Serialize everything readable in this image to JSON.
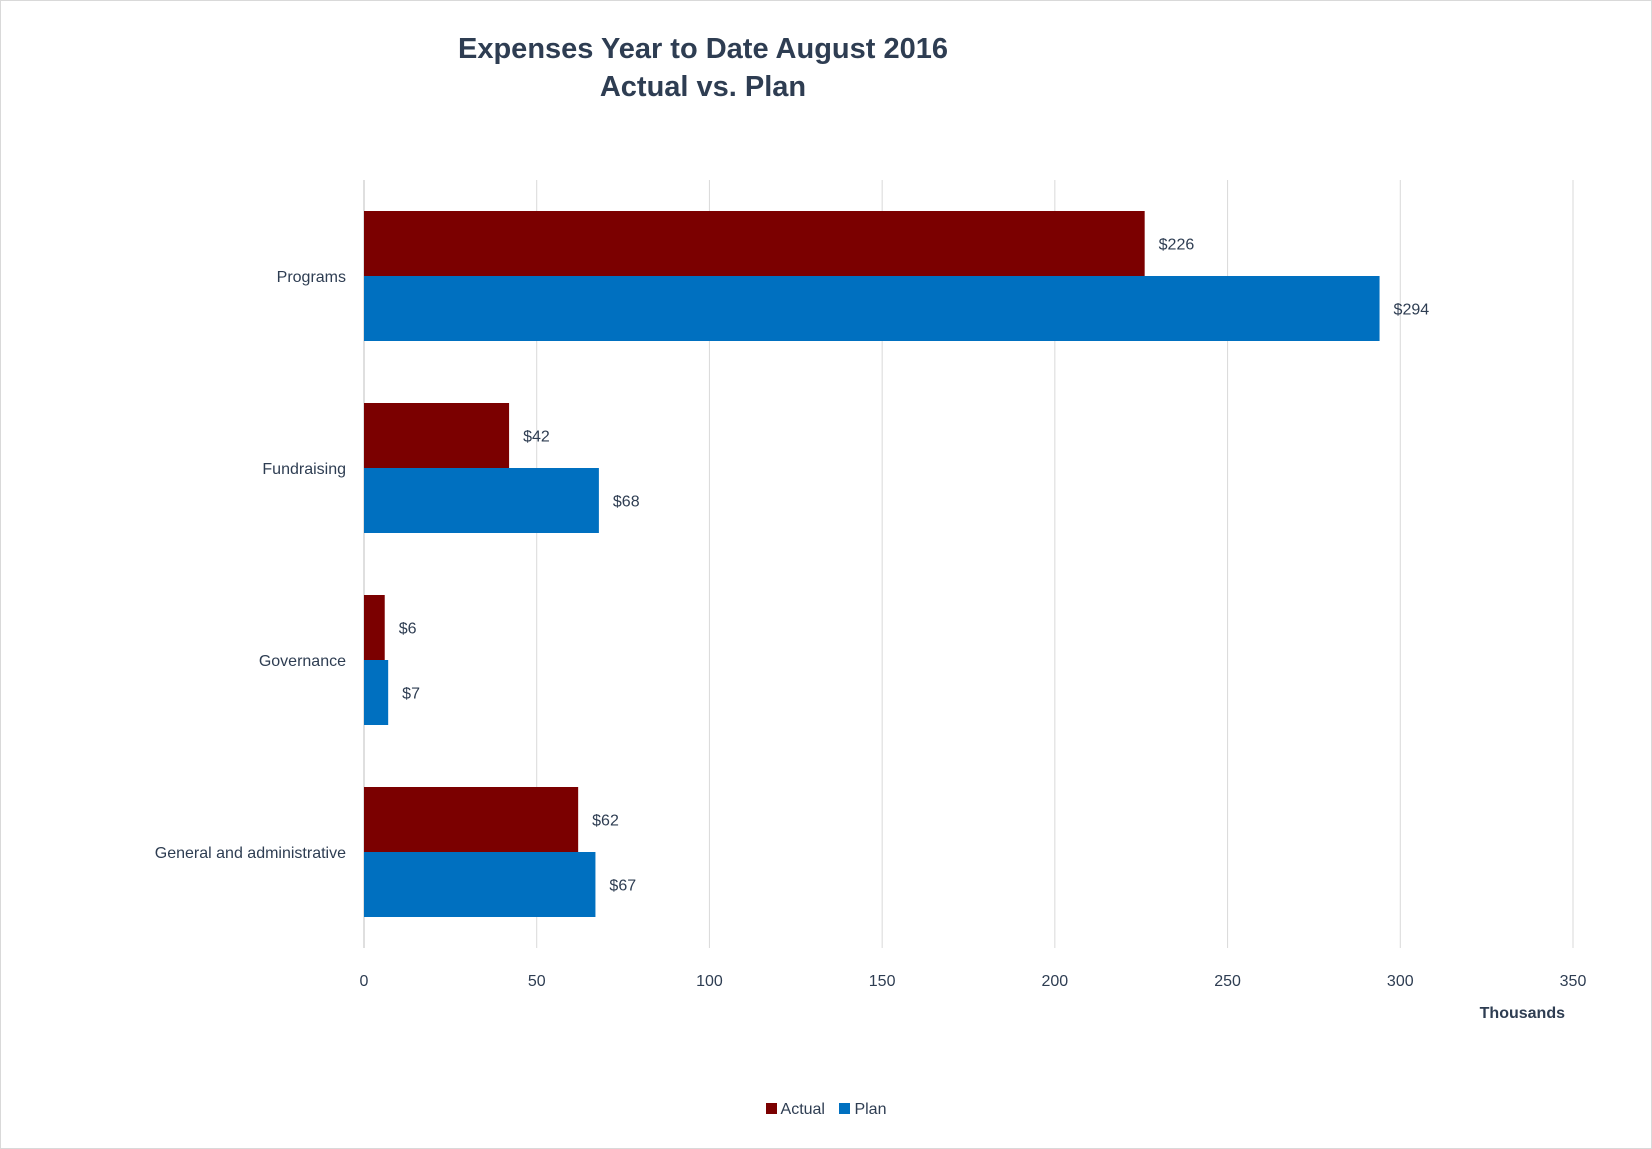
{
  "chart_data": {
    "type": "bar",
    "orientation": "horizontal",
    "title_line1": "Expenses Year to Date August 2016",
    "title_line2": "Actual vs. Plan",
    "xlabel": "Thousands",
    "ylabel": "",
    "xlim": [
      0,
      350
    ],
    "xticks": [
      "0",
      "50",
      "100",
      "150",
      "200",
      "250",
      "300",
      "350"
    ],
    "categories": [
      "Programs",
      "Fundraising",
      "Governance",
      "General and administrative"
    ],
    "series": [
      {
        "name": "Actual",
        "color": "#7b0000",
        "values": [
          226,
          42,
          6,
          62
        ],
        "labels": [
          "$226",
          "$42",
          "$6",
          "$62"
        ]
      },
      {
        "name": "Plan",
        "color": "#0070c0",
        "values": [
          294,
          68,
          7,
          67
        ],
        "labels": [
          "$294",
          "$68",
          "$7",
          "$67"
        ]
      }
    ],
    "grid": "vertical",
    "legend_position": "bottom"
  }
}
